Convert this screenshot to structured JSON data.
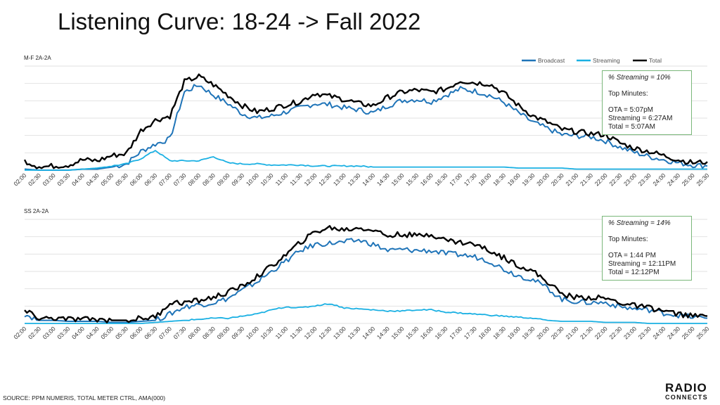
{
  "title": "Listening Curve: 18-24 -> Fall 2022",
  "footer": "SOURCE: PPM NUMERIS, TOTAL METER CTRL, AMA(000)",
  "logo": {
    "line1": "RADIO",
    "line2": "CONNECTS"
  },
  "legend": [
    "Broadcast",
    "Streaming",
    "Total"
  ],
  "colors": {
    "broadcast": "#1f74b8",
    "streaming": "#1ab0e3",
    "total": "#000000",
    "grid": "#e2e2e2",
    "callout_border": "#7ab77a"
  },
  "panels": [
    {
      "label": "M-F 2A-2A",
      "callout": {
        "streaming_share": "% Streaming =  10%",
        "top_minutes": "Top Minutes:",
        "ota": "OTA = 5:07pM",
        "streaming": "Streaming = 6:27AM",
        "total": "Total = 5:07AM"
      }
    },
    {
      "label": "SS 2A-2A",
      "callout": {
        "streaming_share": "% Streaming = 14%",
        "top_minutes": "Top Minutes:",
        "ota": "OTA = 1:44 PM",
        "streaming": "Streaming = 12:11PM",
        "total": "Total = 12:12PM"
      }
    }
  ],
  "chart_data": [
    {
      "type": "line",
      "title": "M-F 2A-2A",
      "x": [
        "02:00",
        "02:30",
        "03:00",
        "03:30",
        "04:00",
        "04:30",
        "05:00",
        "05:30",
        "06:00",
        "06:30",
        "07:00",
        "07:30",
        "08:00",
        "08:30",
        "09:00",
        "09:30",
        "10:00",
        "10:30",
        "11:00",
        "11:30",
        "12:00",
        "12:30",
        "13:00",
        "13:30",
        "14:00",
        "14:30",
        "15:00",
        "15:30",
        "16:00",
        "16:30",
        "17:00",
        "17:30",
        "18:00",
        "18:30",
        "19:00",
        "19:30",
        "20:00",
        "20:30",
        "21:00",
        "21:30",
        "22:00",
        "22:30",
        "23:00",
        "23:30",
        "24:00",
        "24:30",
        "25:00",
        "25:30"
      ],
      "ylim": [
        0,
        100
      ],
      "grid": true,
      "legend_position": "top-right",
      "series": [
        {
          "name": "Broadcast",
          "values": [
            1,
            0,
            0,
            0,
            1,
            1,
            3,
            6,
            18,
            25,
            30,
            75,
            82,
            72,
            64,
            54,
            50,
            52,
            56,
            60,
            64,
            63,
            60,
            58,
            55,
            62,
            67,
            68,
            66,
            72,
            78,
            76,
            72,
            65,
            55,
            46,
            40,
            34,
            33,
            32,
            28,
            22,
            17,
            13,
            10,
            7,
            5,
            4
          ]
        },
        {
          "name": "Streaming",
          "values": [
            0,
            0,
            0,
            0,
            1,
            2,
            4,
            6,
            11,
            19,
            9,
            9,
            9,
            13,
            7,
            6,
            6,
            5,
            5,
            5,
            4,
            4,
            4,
            4,
            3,
            3,
            3,
            3,
            3,
            3,
            3,
            3,
            3,
            3,
            2,
            2,
            2,
            2,
            1,
            1,
            1,
            1,
            1,
            1,
            1,
            1,
            1,
            1
          ]
        },
        {
          "name": "Total",
          "values": [
            9,
            3,
            4,
            5,
            10,
            9,
            14,
            16,
            38,
            48,
            52,
            85,
            90,
            82,
            72,
            62,
            56,
            59,
            63,
            66,
            74,
            71,
            68,
            64,
            62,
            70,
            75,
            77,
            75,
            78,
            86,
            84,
            83,
            74,
            62,
            52,
            46,
            39,
            37,
            35,
            34,
            26,
            21,
            18,
            14,
            10,
            7,
            8
          ]
        }
      ]
    },
    {
      "type": "line",
      "title": "SS 2A-2A",
      "x": [
        "02:00",
        "02:30",
        "03:00",
        "03:30",
        "04:00",
        "04:30",
        "05:00",
        "05:30",
        "06:00",
        "06:30",
        "07:00",
        "07:30",
        "08:00",
        "08:30",
        "09:00",
        "09:30",
        "10:00",
        "10:30",
        "11:00",
        "11:30",
        "12:00",
        "12:30",
        "13:00",
        "13:30",
        "14:00",
        "14:30",
        "15:00",
        "15:30",
        "16:00",
        "16:30",
        "17:00",
        "17:30",
        "18:00",
        "18:30",
        "19:00",
        "19:30",
        "20:00",
        "20:30",
        "21:00",
        "21:30",
        "22:00",
        "22:30",
        "23:00",
        "23:30",
        "24:00",
        "24:30",
        "25:00",
        "25:30"
      ],
      "ylim": [
        0,
        100
      ],
      "grid": true,
      "series": [
        {
          "name": "Broadcast",
          "values": [
            9,
            3,
            3,
            2,
            2,
            2,
            1,
            1,
            2,
            3,
            9,
            16,
            18,
            20,
            24,
            32,
            40,
            50,
            60,
            70,
            76,
            77,
            78,
            80,
            76,
            70,
            71,
            70,
            70,
            67,
            66,
            64,
            60,
            52,
            46,
            42,
            34,
            23,
            21,
            20,
            20,
            16,
            14,
            13,
            10,
            8,
            6,
            5
          ]
        },
        {
          "name": "Streaming",
          "values": [
            0,
            0,
            0,
            0,
            0,
            0,
            0,
            0,
            0,
            1,
            2,
            3,
            4,
            5,
            5,
            7,
            9,
            13,
            16,
            15,
            17,
            19,
            15,
            14,
            13,
            12,
            12,
            13,
            13,
            11,
            10,
            9,
            8,
            7,
            6,
            5,
            3,
            2,
            2,
            2,
            1,
            1,
            1,
            0,
            0,
            0,
            0,
            0
          ]
        },
        {
          "name": "Total",
          "values": [
            12,
            5,
            5,
            4,
            4,
            4,
            3,
            3,
            5,
            6,
            20,
            20,
            22,
            25,
            30,
            36,
            45,
            55,
            66,
            78,
            88,
            92,
            90,
            92,
            90,
            84,
            86,
            84,
            86,
            80,
            78,
            76,
            70,
            63,
            56,
            50,
            40,
            28,
            25,
            25,
            24,
            20,
            17,
            15,
            12,
            9,
            7,
            7
          ]
        }
      ]
    }
  ]
}
